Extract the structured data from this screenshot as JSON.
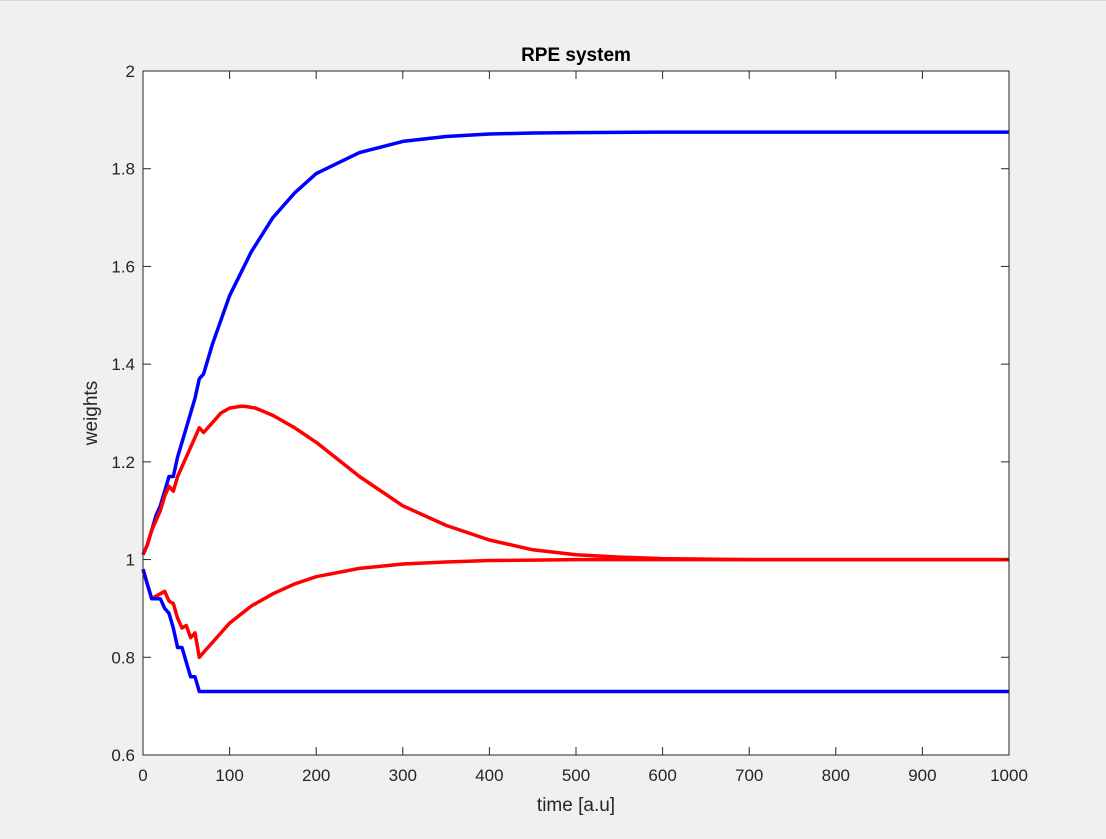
{
  "chart_data": {
    "type": "line",
    "title": "RPE system",
    "xlabel": "time [a.u]",
    "ylabel": "weights",
    "xlim": [
      0,
      1000
    ],
    "ylim": [
      0.6,
      2
    ],
    "xticks": [
      "0",
      "100",
      "200",
      "300",
      "400",
      "500",
      "600",
      "700",
      "800",
      "900",
      "1000"
    ],
    "yticks": [
      "0.6",
      "0.8",
      "1",
      "1.2",
      "1.4",
      "1.6",
      "1.8",
      "2"
    ],
    "grid": false,
    "legend": "none",
    "series": [
      {
        "color": "#0000ff",
        "x": [
          0,
          5,
          10,
          15,
          20,
          25,
          30,
          35,
          40,
          50,
          60,
          65,
          70,
          80,
          100,
          125,
          150,
          175,
          200,
          250,
          300,
          350,
          400,
          450,
          500,
          600,
          700,
          800,
          900,
          1000
        ],
        "values": [
          1.01,
          1.03,
          1.06,
          1.09,
          1.11,
          1.14,
          1.17,
          1.17,
          1.21,
          1.27,
          1.33,
          1.37,
          1.38,
          1.44,
          1.54,
          1.63,
          1.7,
          1.75,
          1.79,
          1.833,
          1.856,
          1.866,
          1.871,
          1.873,
          1.874,
          1.875,
          1.875,
          1.875,
          1.875,
          1.875
        ]
      },
      {
        "color": "#ff0000",
        "x": [
          0,
          5,
          10,
          15,
          20,
          25,
          30,
          35,
          40,
          50,
          60,
          65,
          70,
          80,
          90,
          100,
          110,
          115,
          120,
          130,
          150,
          175,
          200,
          250,
          300,
          350,
          400,
          450,
          500,
          550,
          600,
          700,
          800,
          900,
          1000
        ],
        "values": [
          1.01,
          1.03,
          1.06,
          1.08,
          1.1,
          1.13,
          1.15,
          1.14,
          1.17,
          1.21,
          1.25,
          1.27,
          1.26,
          1.28,
          1.3,
          1.31,
          1.313,
          1.314,
          1.313,
          1.31,
          1.295,
          1.27,
          1.24,
          1.17,
          1.11,
          1.07,
          1.04,
          1.02,
          1.01,
          1.005,
          1.002,
          1.0,
          1.0,
          1.0,
          1.0
        ]
      },
      {
        "color": "#ff0000",
        "x": [
          0,
          5,
          10,
          15,
          20,
          25,
          30,
          35,
          40,
          45,
          50,
          55,
          60,
          65,
          70,
          80,
          100,
          125,
          150,
          175,
          200,
          250,
          300,
          350,
          400,
          450,
          500,
          600,
          700,
          800,
          900,
          1000
        ],
        "values": [
          0.98,
          0.95,
          0.92,
          0.925,
          0.93,
          0.935,
          0.915,
          0.91,
          0.88,
          0.86,
          0.865,
          0.84,
          0.85,
          0.8,
          0.81,
          0.83,
          0.87,
          0.905,
          0.93,
          0.95,
          0.965,
          0.982,
          0.991,
          0.995,
          0.998,
          0.999,
          1.0,
          1.0,
          1.0,
          1.0,
          1.0,
          1.0
        ]
      },
      {
        "color": "#0000ff",
        "x": [
          0,
          5,
          10,
          20,
          25,
          30,
          35,
          40,
          45,
          50,
          55,
          60,
          65,
          70,
          100,
          200,
          300,
          400,
          500,
          600,
          700,
          800,
          900,
          1000
        ],
        "values": [
          0.98,
          0.95,
          0.92,
          0.92,
          0.9,
          0.89,
          0.86,
          0.82,
          0.82,
          0.79,
          0.76,
          0.76,
          0.73,
          0.73,
          0.73,
          0.73,
          0.73,
          0.73,
          0.73,
          0.73,
          0.73,
          0.73,
          0.73,
          0.73
        ]
      }
    ]
  }
}
